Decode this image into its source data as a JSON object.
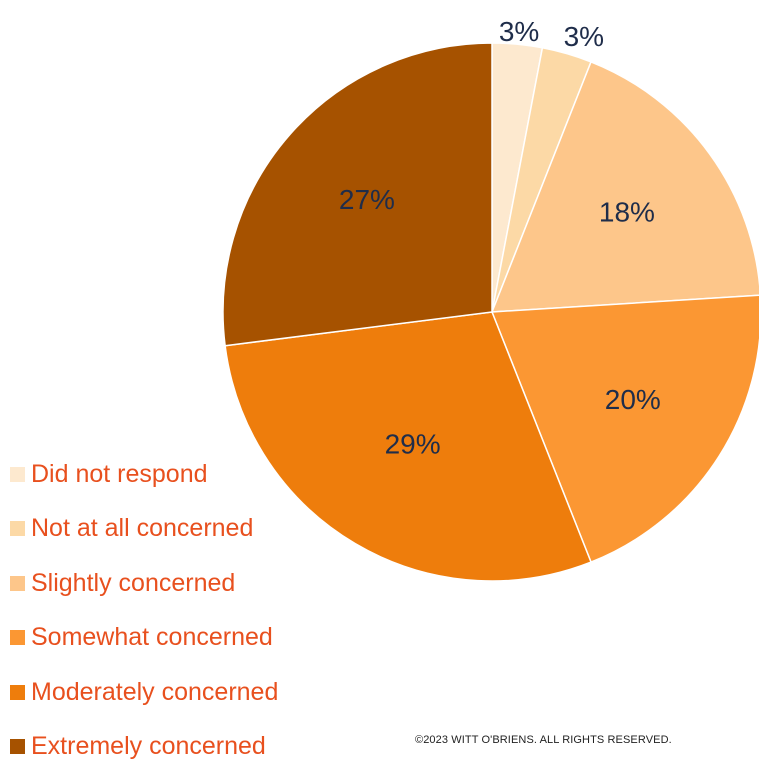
{
  "chart_data": {
    "type": "pie",
    "title": "",
    "slices": [
      {
        "label": "Did not respond",
        "value": 3,
        "display": "3%",
        "color": "#fde9cf"
      },
      {
        "label": "Not at all concerned",
        "value": 3,
        "display": "3%",
        "color": "#fcd9a6"
      },
      {
        "label": "Slightly concerned",
        "value": 18,
        "display": "18%",
        "color": "#fdc68a"
      },
      {
        "label": "Somewhat concerned",
        "value": 20,
        "display": "20%",
        "color": "#fb9733"
      },
      {
        "label": "Moderately concerned",
        "value": 29,
        "display": "29%",
        "color": "#ee7d0c"
      },
      {
        "label": "Extremely concerned",
        "value": 27,
        "display": "27%",
        "color": "#a65200"
      }
    ],
    "legend_position": "bottom-left"
  },
  "footer": {
    "copyright": "©2023 WITT O'BRIENS. ALL RIGHTS RESERVED."
  },
  "colors": {
    "legend_text": "#e8501e",
    "label_text": "#1f2d4a"
  }
}
